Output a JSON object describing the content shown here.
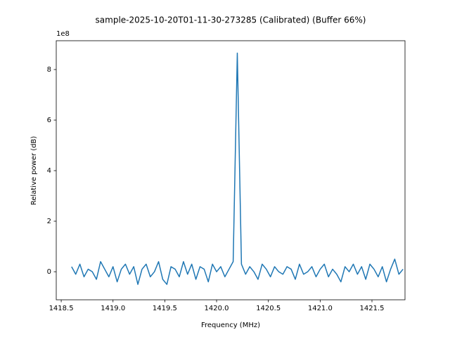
{
  "chart_data": {
    "type": "line",
    "title": "sample-2025-10-20T01-11-30-273285 (Calibrated) (Buffer 66%)",
    "xlabel": "Frequency (MHz)",
    "ylabel": "Relative power (dB)",
    "y_offset_label": "1e8",
    "color": "#1f77b4",
    "x": [
      1418.6,
      1418.64,
      1418.68,
      1418.72,
      1418.76,
      1418.8,
      1418.84,
      1418.88,
      1418.92,
      1418.96,
      1419.0,
      1419.04,
      1419.08,
      1419.12,
      1419.16,
      1419.2,
      1419.24,
      1419.28,
      1419.32,
      1419.36,
      1419.4,
      1419.44,
      1419.48,
      1419.52,
      1419.56,
      1419.6,
      1419.64,
      1419.68,
      1419.72,
      1419.76,
      1419.8,
      1419.84,
      1419.88,
      1419.92,
      1419.96,
      1420.0,
      1420.04,
      1420.08,
      1420.12,
      1420.16,
      1420.2,
      1420.24,
      1420.28,
      1420.32,
      1420.36,
      1420.4,
      1420.44,
      1420.48,
      1420.52,
      1420.56,
      1420.6,
      1420.64,
      1420.68,
      1420.72,
      1420.76,
      1420.8,
      1420.84,
      1420.88,
      1420.92,
      1420.96,
      1421.0,
      1421.04,
      1421.08,
      1421.12,
      1421.16,
      1421.2,
      1421.24,
      1421.28,
      1421.32,
      1421.36,
      1421.4,
      1421.44,
      1421.48,
      1421.52,
      1421.56,
      1421.6,
      1421.64,
      1421.68,
      1421.72,
      1421.76,
      1421.8
    ],
    "values": [
      0.2,
      -0.1,
      0.3,
      -0.2,
      0.1,
      0.0,
      -0.3,
      0.4,
      0.1,
      -0.2,
      0.2,
      -0.4,
      0.1,
      0.3,
      -0.1,
      0.2,
      -0.5,
      0.1,
      0.3,
      -0.2,
      0.0,
      0.4,
      -0.3,
      -0.5,
      0.2,
      0.1,
      -0.2,
      0.4,
      -0.1,
      0.3,
      -0.3,
      0.2,
      0.1,
      -0.4,
      0.3,
      0.0,
      0.2,
      -0.2,
      0.1,
      0.4,
      8.65,
      0.3,
      -0.1,
      0.2,
      0.0,
      -0.3,
      0.3,
      0.1,
      -0.2,
      0.2,
      0.0,
      -0.1,
      0.2,
      0.1,
      -0.3,
      0.3,
      -0.1,
      0.0,
      0.2,
      -0.2,
      0.1,
      0.3,
      -0.2,
      0.1,
      -0.1,
      -0.4,
      0.2,
      0.0,
      0.3,
      -0.1,
      0.2,
      -0.3,
      0.3,
      0.1,
      -0.2,
      0.2,
      -0.4,
      0.1,
      0.5,
      -0.1,
      0.1
    ],
    "xlim": [
      1418.452,
      1421.819
    ],
    "xticks": [
      1418.5,
      {
        "value": 1419,
        "label": "1419.0"
      },
      1419.5,
      {
        "value": 1420,
        "label": "1420.0"
      },
      1420.5,
      {
        "value": 1421,
        "label": "1421.0"
      },
      1421.5
    ],
    "ylim": [
      -1.11,
      9.14
    ],
    "yticks": [
      0,
      2,
      4,
      6,
      8
    ]
  }
}
